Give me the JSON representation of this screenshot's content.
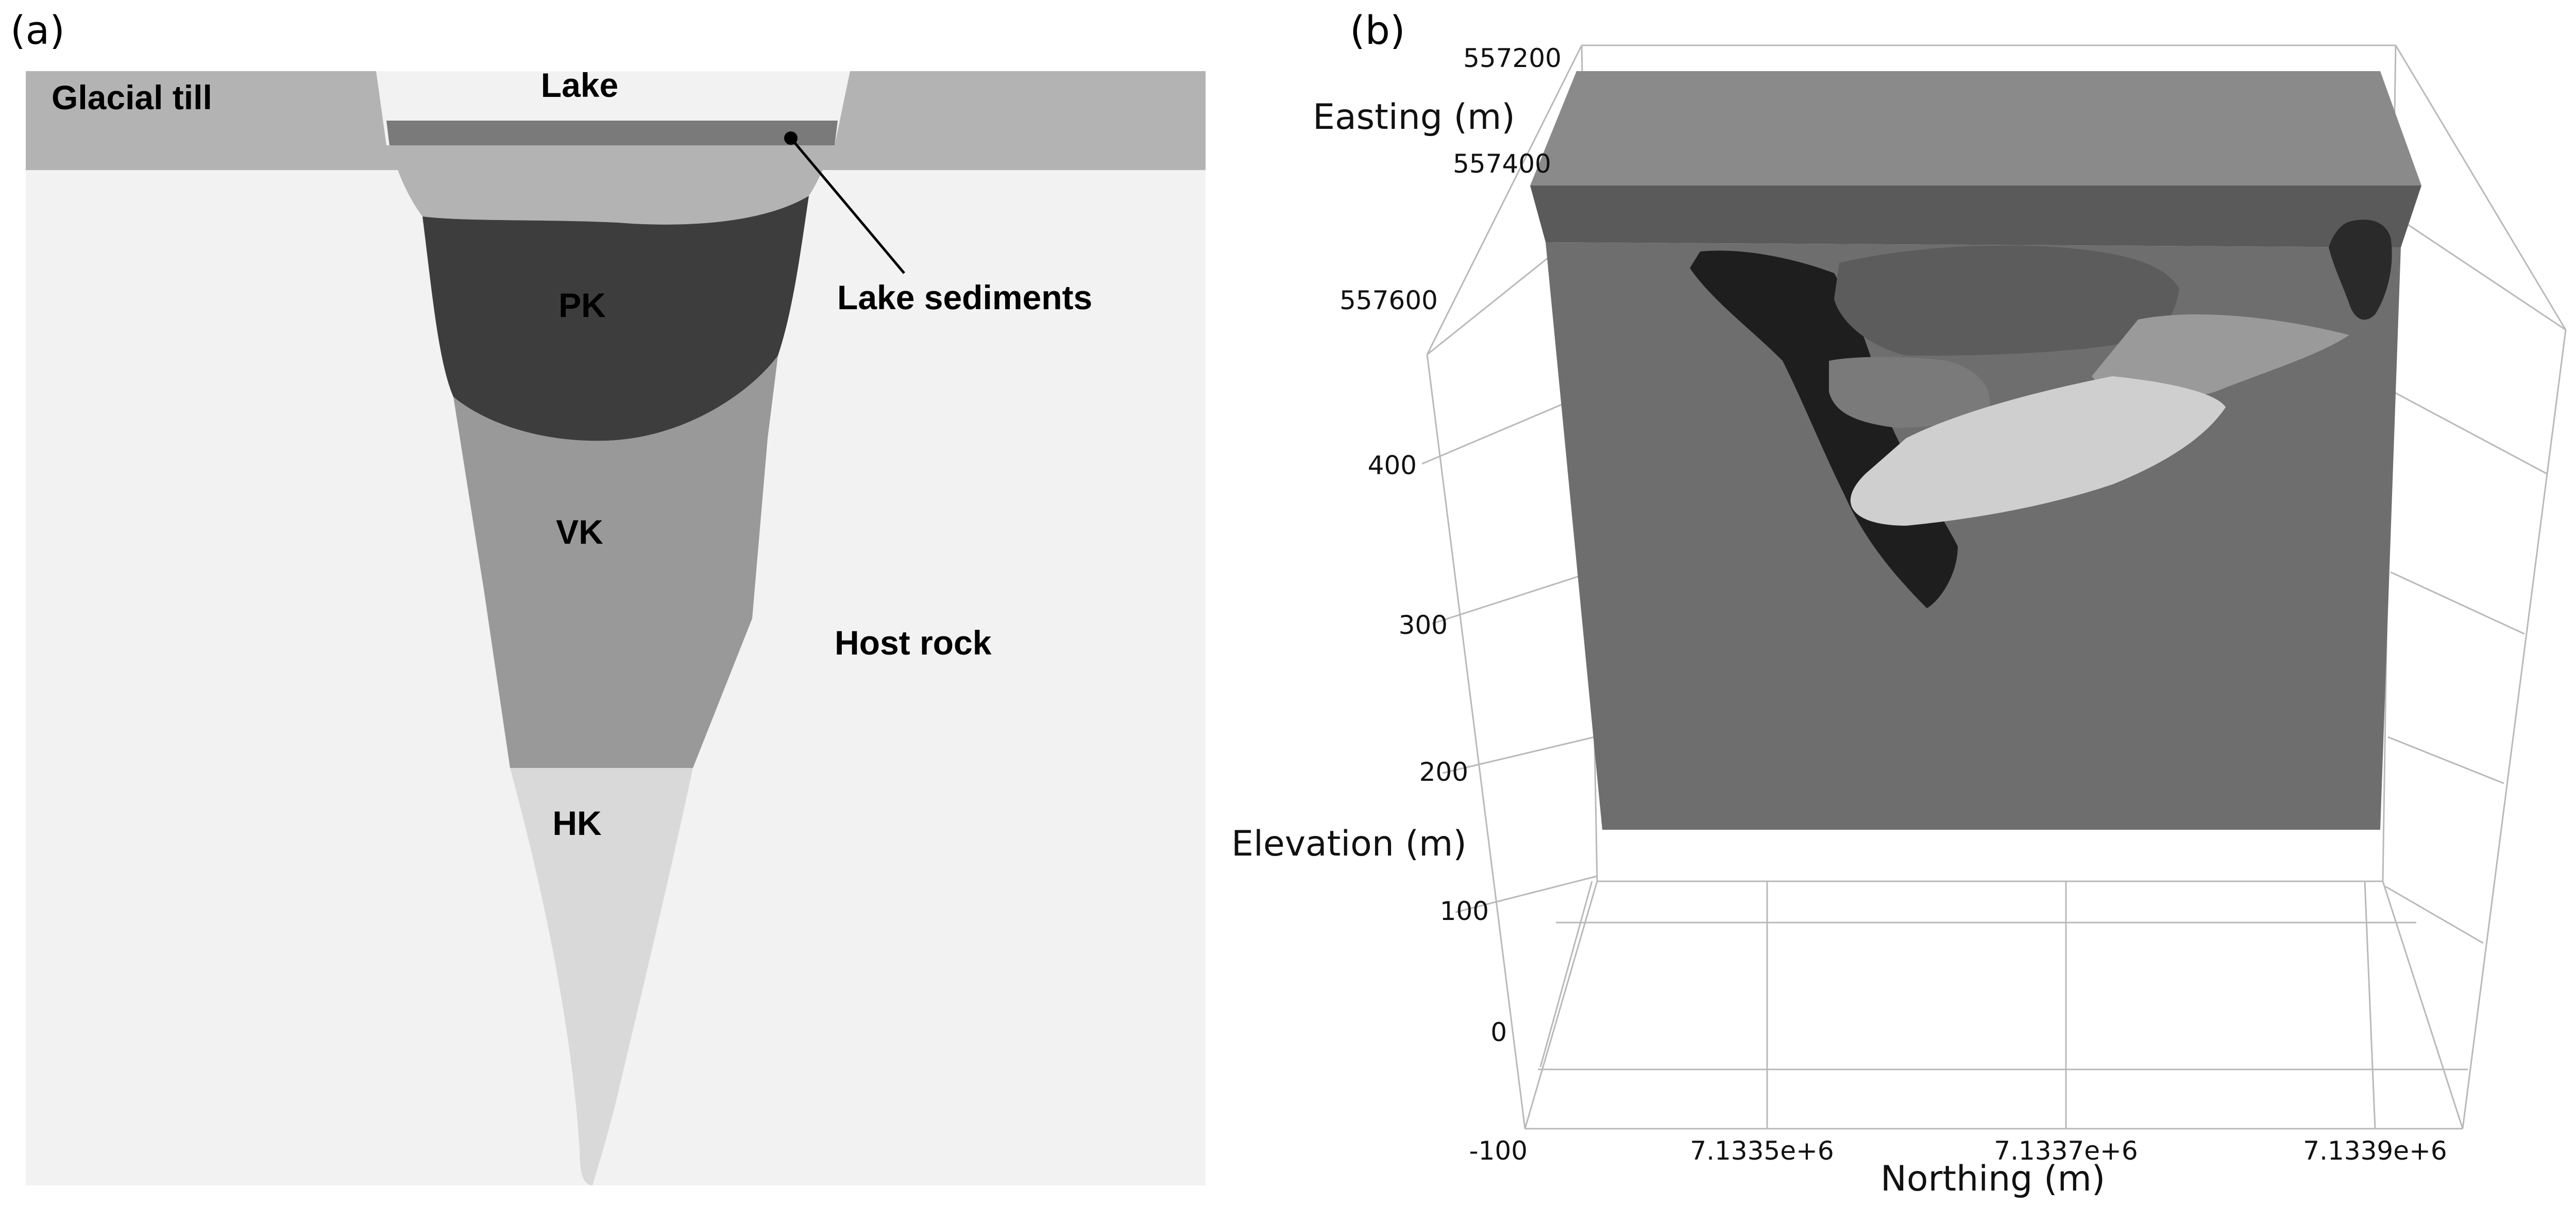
{
  "panel_a": {
    "tag": "(a)",
    "layers": {
      "glacial_till": "Glacial till",
      "lake": "Lake",
      "lake_sediments": "Lake sediments",
      "pk": "PK",
      "vk": "VK",
      "hk": "HK",
      "host_rock": "Host rock"
    },
    "colors": {
      "host_rock": "#f2f2f2",
      "glacial_till": "#b3b3b3",
      "lake": "#f2f2f2",
      "lake_sediments": "#7a7a7a",
      "pk": "#3d3d3d",
      "vk": "#999999",
      "hk": "#d9d9d9"
    }
  },
  "panel_b": {
    "tag": "(b)",
    "axes": {
      "easting_title": "Easting (m)",
      "easting_ticks": [
        "557200",
        "557400",
        "557600"
      ],
      "elevation_title": "Elevation (m)",
      "elevation_ticks": [
        "400",
        "300",
        "200",
        "100",
        "0",
        "-100"
      ],
      "northing_title": "Northing (m)",
      "northing_ticks": [
        "7.1335e+6",
        "7.1337e+6",
        "7.1339e+6"
      ]
    },
    "colors": {
      "box_front": "#6e6e6e",
      "box_top": "#8a8a8a",
      "box_band": "#5a5a5a",
      "body_dark": "#1e1e1e",
      "body_mid": "#6f6f6f",
      "body_light": "#cfcfcf"
    }
  }
}
